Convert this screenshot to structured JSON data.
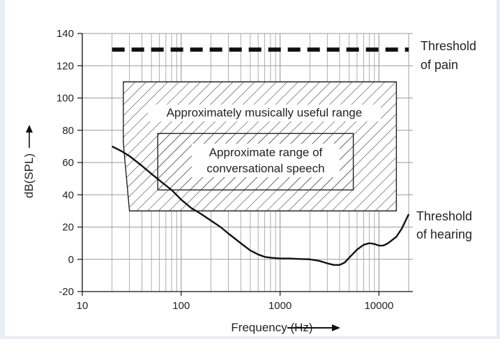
{
  "chart_data": {
    "type": "line",
    "xscale": "log",
    "xlim": [
      10,
      22000
    ],
    "ylim": [
      -20,
      140
    ],
    "xlabel": "Frequency (Hz)",
    "ylabel": "dB(SPL)",
    "xticks": [
      10,
      100,
      1000,
      10000
    ],
    "xtick_labels": [
      "10",
      "100",
      "1000",
      "10000"
    ],
    "yticks": [
      -20,
      0,
      20,
      40,
      60,
      80,
      100,
      120,
      140
    ],
    "ytick_labels": [
      "-20",
      "0",
      "20",
      "40",
      "60",
      "80",
      "100",
      "120",
      "140"
    ],
    "grid": true,
    "series": [
      {
        "name": "Threshold of hearing",
        "style": "solid",
        "x": [
          20,
          25,
          30,
          40,
          50,
          63,
          80,
          100,
          125,
          160,
          200,
          250,
          300,
          400,
          500,
          600,
          700,
          800,
          1000,
          1250,
          1600,
          2000,
          2500,
          3000,
          3500,
          4000,
          4500,
          5000,
          6000,
          7000,
          8000,
          9000,
          10000,
          11000,
          12000,
          13000,
          15000,
          17000,
          20000
        ],
        "y": [
          70,
          67,
          64,
          58,
          53,
          48,
          43,
          37,
          32,
          28,
          24,
          20,
          16,
          10,
          5.5,
          3,
          1.5,
          1,
          0.5,
          0.5,
          0.2,
          0,
          -1,
          -2.5,
          -3.5,
          -3.5,
          -2,
          1,
          6,
          9,
          10,
          9.5,
          8.5,
          8.5,
          9.5,
          11,
          14,
          19,
          28
        ]
      },
      {
        "name": "Threshold of pain",
        "style": "dashed",
        "x": [
          20,
          20000
        ],
        "y": [
          130,
          130
        ]
      }
    ],
    "regions": [
      {
        "label": "Approximately musically useful range",
        "polygon": [
          [
            26,
            110
          ],
          [
            15000,
            110
          ],
          [
            15000,
            30
          ],
          [
            30,
            30
          ],
          [
            26,
            72
          ]
        ]
      },
      {
        "label_lines": [
          "Approximate range of",
          "conversational speech"
        ],
        "rect": {
          "x0": 58,
          "x1": 5500,
          "y0": 43,
          "y1": 78
        }
      }
    ],
    "side_labels": {
      "pain": [
        "Threshold",
        "of pain"
      ],
      "hearing": [
        "Threshold",
        "of hearing"
      ]
    },
    "colors": {
      "line": "#111111",
      "grid": "#9a9a9a",
      "hatch": "#444444"
    }
  }
}
